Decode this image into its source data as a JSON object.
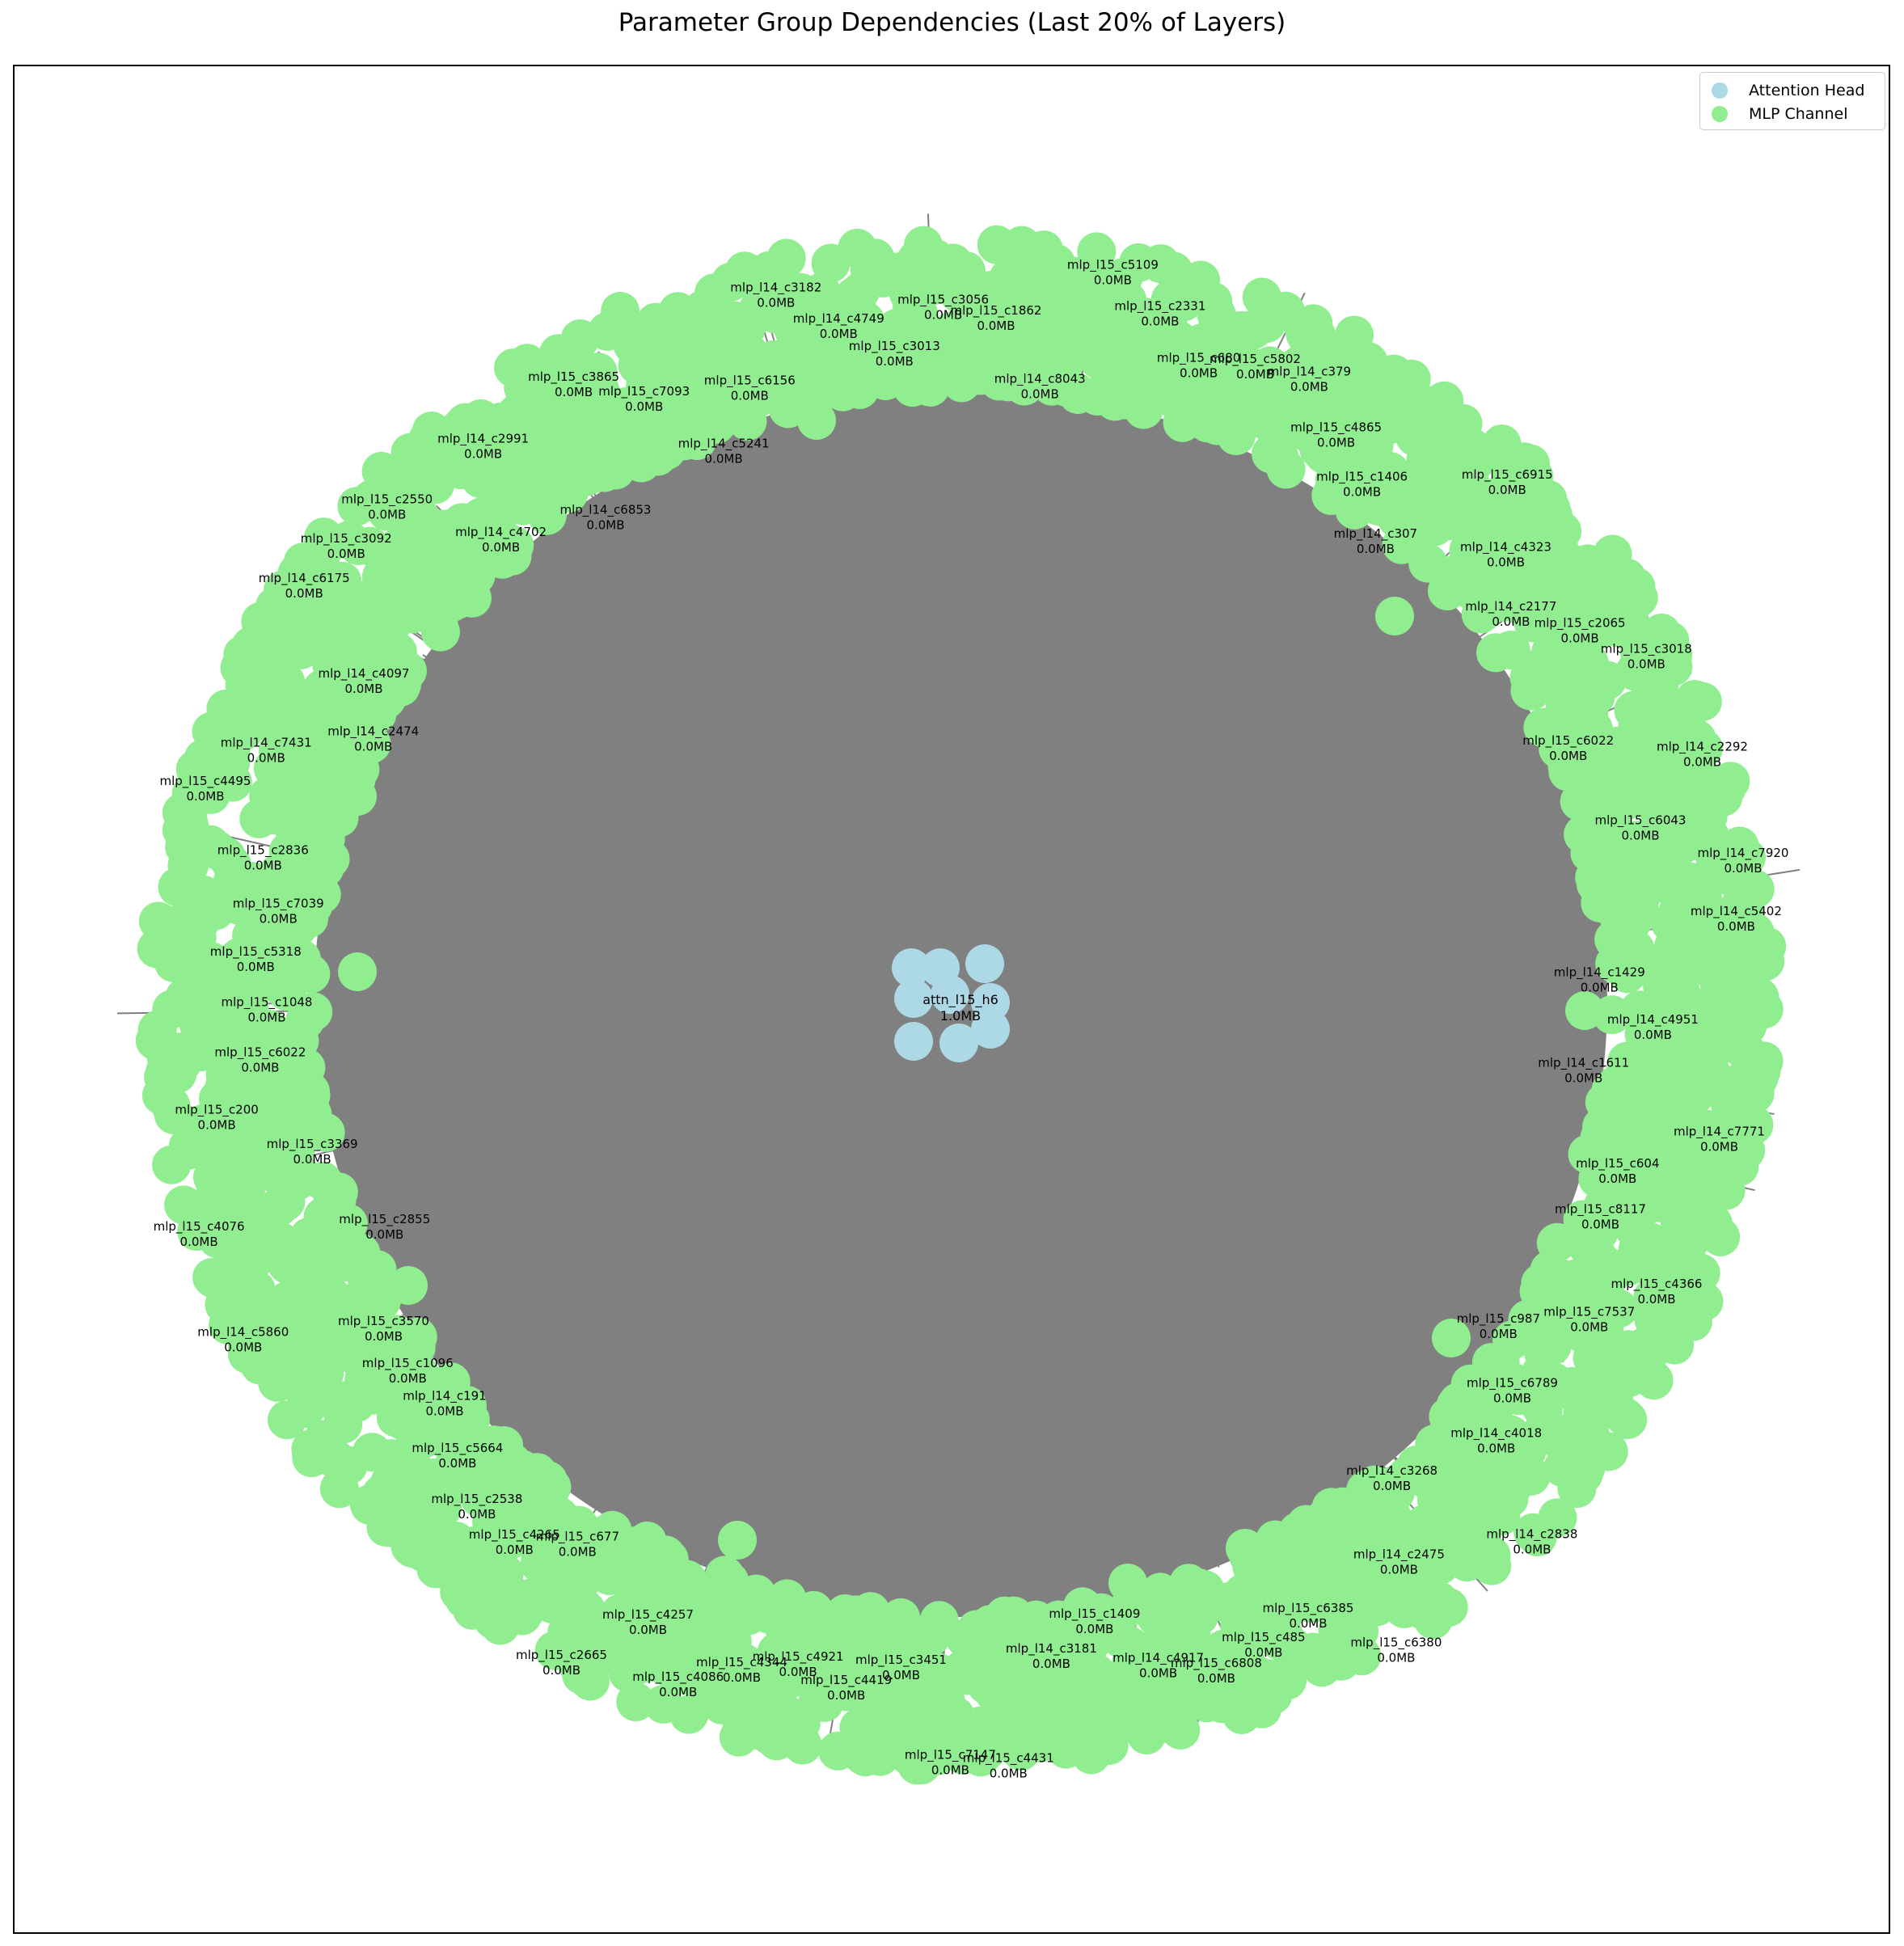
{
  "figure": {
    "title": "Parameter Group Dependencies (Last 20% of Layers)"
  },
  "legend": {
    "placement": "top-right",
    "items": [
      {
        "label": "Attention Head",
        "color": "#add8e6"
      },
      {
        "label": "MLP Channel",
        "color": "#90ee90"
      }
    ]
  },
  "colors": {
    "attention_node": "#add8e6",
    "mlp_node": "#90ee90",
    "edge": "#808080",
    "frame": "#000000"
  },
  "center_node": {
    "id": "attn_l15_h6",
    "size": "1.0MB"
  },
  "mlp_size_label": "0.0MB",
  "mlp_node_labels": [
    "mlp_l15_c1862",
    "mlp_l14_c8043",
    "mlp_l15_c5109",
    "mlp_l15_c2331",
    "mlp_l15_c680",
    "mlp_l15_c5802",
    "mlp_l14_c379",
    "mlp_l15_c4865",
    "mlp_l15_c1406",
    "mlp_l14_c307",
    "mlp_l15_c6915",
    "mlp_l14_c4323",
    "mlp_l14_c2177",
    "mlp_l15_c2065",
    "mlp_l15_c3018",
    "mlp_l15_c6022",
    "mlp_l14_c2292",
    "mlp_l15_c6043",
    "mlp_l14_c7920",
    "mlp_l14_c5402",
    "mlp_l14_c1429",
    "mlp_l14_c4951",
    "mlp_l14_c1611",
    "mlp_l14_c7771",
    "mlp_l15_c604",
    "mlp_l15_c8117",
    "mlp_l15_c4366",
    "mlp_l15_c7537",
    "mlp_l15_c987",
    "mlp_l15_c6789",
    "mlp_l14_c4018",
    "mlp_l14_c2838",
    "mlp_l14_c3268",
    "mlp_l14_c2475",
    "mlp_l15_c6380",
    "mlp_l15_c6385",
    "mlp_l15_c485",
    "mlp_l15_c6808",
    "mlp_l14_c4917",
    "mlp_l15_c1409",
    "mlp_l14_c3181",
    "mlp_l15_c4431",
    "mlp_l15_c7147",
    "mlp_l15_c3451",
    "mlp_l15_c4419",
    "mlp_l15_c4921",
    "mlp_l15_c4344",
    "mlp_l15_c4086",
    "mlp_l15_c4257",
    "mlp_l15_c2665",
    "mlp_l15_c677",
    "mlp_l15_c4265",
    "mlp_l15_c2538",
    "mlp_l15_c5664",
    "mlp_l14_c191",
    "mlp_l15_c1096",
    "mlp_l15_c3570",
    "mlp_l14_c5860",
    "mlp_l15_c2855",
    "mlp_l15_c4076",
    "mlp_l15_c3369",
    "mlp_l15_c200",
    "mlp_l15_c6022",
    "mlp_l15_c1048",
    "mlp_l15_c5318",
    "mlp_l15_c7039",
    "mlp_l15_c2836",
    "mlp_l15_c4495",
    "mlp_l14_c7431",
    "mlp_l14_c2474",
    "mlp_l14_c4097",
    "mlp_l14_c6175",
    "mlp_l15_c3092",
    "mlp_l15_c2550",
    "mlp_l14_c4702",
    "mlp_l14_c2991",
    "mlp_l14_c6853",
    "mlp_l15_c3865",
    "mlp_l15_c7093",
    "mlp_l14_c5241",
    "mlp_l15_c6156",
    "mlp_l14_c3182",
    "mlp_l14_c4749",
    "mlp_l15_c3013",
    "mlp_l15_c3056"
  ]
}
